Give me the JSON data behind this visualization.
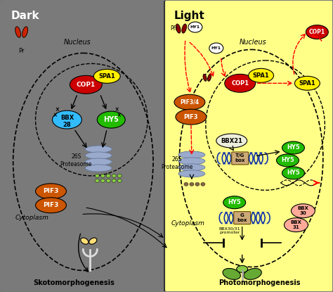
{
  "dark_bg": "#7a7a7a",
  "light_bg": "#FFFF88",
  "title_dark": "Dark",
  "title_light": "Light",
  "bottom_dark": "Skotomorphogenesis",
  "bottom_light": "Photomorphogenesis",
  "nucleus_label": "Nucleus",
  "cytoplasm_label": "Cytoplasm",
  "colors": {
    "red": "#CC0000",
    "dark_red": "#8B0000",
    "yellow": "#FFEE00",
    "cyan": "#33BBFF",
    "green": "#22BB00",
    "orange": "#CC5500",
    "blue_prot": "#99AACC",
    "white": "#FFFFFF",
    "peach": "#FFAA99",
    "tan": "#CCAA77",
    "light_yellow": "#FFFFCC",
    "brown_dot": "#886644"
  }
}
